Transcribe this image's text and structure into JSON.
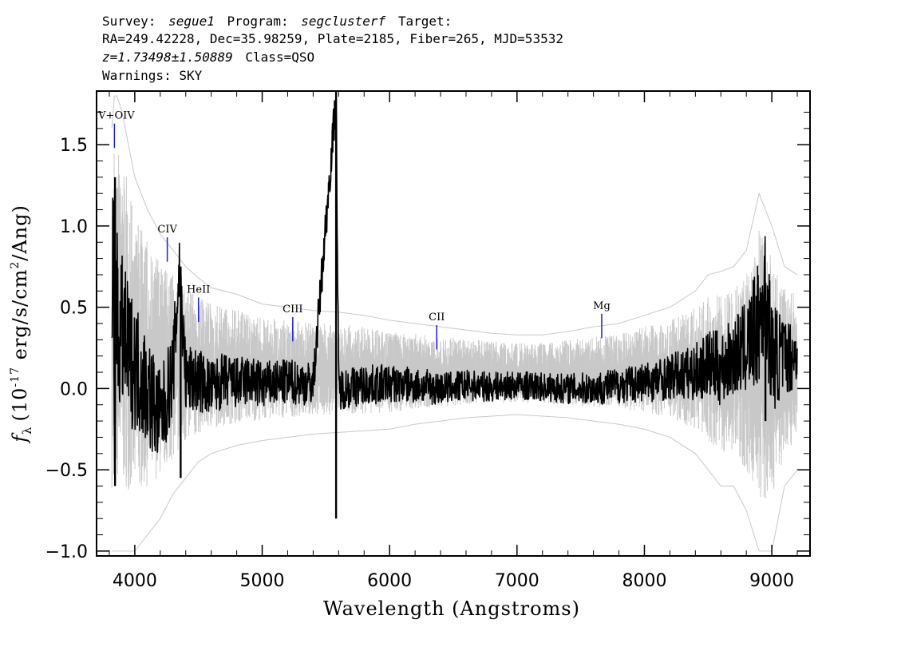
{
  "header": {
    "line1": {
      "survey_label": "Survey:",
      "survey": "segue1",
      "program_label": "Program:",
      "program": "segclusterf",
      "target_label": "Target:"
    },
    "line2": "RA=249.42228, Dec=35.98259, Plate=2185, Fiber=265, MJD=53532",
    "line3": {
      "z": "z=1.73498±1.50889",
      "class": "Class=QSO"
    },
    "line4": "Warnings: SKY"
  },
  "chart_data": {
    "type": "line",
    "xlabel": "Wavelength (Angstroms)",
    "ylabel": "f",
    "ylabel_sub": "λ",
    "ylabel_open": "(10",
    "ylabel_exp": "-17",
    "ylabel_mid": " erg/s/cm",
    "ylabel_exp2": "2",
    "ylabel_close": "/Ang)",
    "xlim": [
      3700,
      9300
    ],
    "ylim": [
      -1.03,
      1.83
    ],
    "xticks": [
      {
        "value": 4000,
        "label": "4000"
      },
      {
        "value": 5000,
        "label": "5000"
      },
      {
        "value": 6000,
        "label": "6000"
      },
      {
        "value": 7000,
        "label": "7000"
      },
      {
        "value": 8000,
        "label": "8000"
      },
      {
        "value": 9000,
        "label": "9000"
      }
    ],
    "yticks": [
      {
        "value": -1.0,
        "label": "−1.0"
      },
      {
        "value": -0.5,
        "label": "−0.5"
      },
      {
        "value": 0.0,
        "label": "0.0"
      },
      {
        "value": 0.5,
        "label": "0.5"
      },
      {
        "value": 1.0,
        "label": "1.0"
      },
      {
        "value": 1.5,
        "label": "1.5"
      }
    ],
    "series": [
      {
        "role": "error",
        "color": "#c8c8c8",
        "x": [
          3820,
          3840,
          3860,
          3900,
          3950,
          4000,
          4100,
          4200,
          4300,
          4400,
          4500,
          4600,
          4800,
          5000,
          5200,
          5400,
          5600,
          5800,
          6000,
          6200,
          6400,
          6600,
          6800,
          7000,
          7200,
          7400,
          7600,
          7800,
          8000,
          8200,
          8400,
          8500,
          8600,
          8700,
          8800,
          8900,
          9000,
          9100,
          9200
        ],
        "upper": [
          1.6,
          1.8,
          1.8,
          1.7,
          1.5,
          1.3,
          1.1,
          0.95,
          0.85,
          0.75,
          0.68,
          0.62,
          0.58,
          0.52,
          0.5,
          0.48,
          0.47,
          0.45,
          0.42,
          0.4,
          0.38,
          0.36,
          0.34,
          0.33,
          0.33,
          0.35,
          0.38,
          0.4,
          0.45,
          0.5,
          0.6,
          0.7,
          0.72,
          0.75,
          0.85,
          1.2,
          1.0,
          0.75,
          0.7
        ],
        "lower": [
          -1.0,
          -1.0,
          -1.0,
          -1.0,
          -1.0,
          -1.0,
          -0.9,
          -0.8,
          -0.65,
          -0.55,
          -0.45,
          -0.4,
          -0.35,
          -0.32,
          -0.3,
          -0.28,
          -0.27,
          -0.26,
          -0.25,
          -0.22,
          -0.2,
          -0.18,
          -0.17,
          -0.16,
          -0.17,
          -0.18,
          -0.2,
          -0.22,
          -0.25,
          -0.3,
          -0.4,
          -0.5,
          -0.6,
          -0.6,
          -0.75,
          -1.0,
          -1.0,
          -0.6,
          -0.5
        ]
      },
      {
        "role": "flux",
        "color": "#000000",
        "x": [
          3820,
          3830,
          3840,
          3850,
          3870,
          3900,
          3950,
          4000,
          4100,
          4200,
          4300,
          4350,
          4400,
          4500,
          4600,
          4700,
          4800,
          4900,
          5000,
          5200,
          5400,
          5580,
          5600,
          5800,
          6000,
          6200,
          6400,
          6600,
          6800,
          7000,
          7200,
          7400,
          7600,
          7800,
          8000,
          8200,
          8400,
          8500,
          8600,
          8700,
          8800,
          8900,
          8950,
          9000,
          9100,
          9200
        ],
        "values": [
          0.1,
          1.3,
          -0.6,
          0.7,
          0.3,
          0.35,
          0.2,
          0.15,
          0.0,
          -0.2,
          0.1,
          0.75,
          0.05,
          0.05,
          0.0,
          0.05,
          0.03,
          0.05,
          0.02,
          0.04,
          0.03,
          1.8,
          0.0,
          0.02,
          0.03,
          0.02,
          0.0,
          0.02,
          0.01,
          0.02,
          0.01,
          0.0,
          0.0,
          0.02,
          0.04,
          0.07,
          0.1,
          0.15,
          0.12,
          0.2,
          0.25,
          0.4,
          0.6,
          0.2,
          0.2,
          0.2
        ],
        "spikes": [
          {
            "x": 5580,
            "lo": -0.8,
            "hi": 1.83
          },
          {
            "x": 3845,
            "lo": -0.6,
            "hi": 1.3
          },
          {
            "x": 4360,
            "lo": -0.55,
            "hi": 0.75
          },
          {
            "x": 8950,
            "lo": -0.2,
            "hi": 0.65
          }
        ]
      }
    ],
    "lines": [
      {
        "label": "IV+OIV",
        "x": 3840,
        "y_top": 1.63,
        "y_bot": 1.48
      },
      {
        "label": "CIV",
        "x": 4255,
        "y_top": 0.93,
        "y_bot": 0.78
      },
      {
        "label": "HeII",
        "x": 4500,
        "y_top": 0.56,
        "y_bot": 0.41
      },
      {
        "label": "CIII",
        "x": 5240,
        "y_top": 0.44,
        "y_bot": 0.29
      },
      {
        "label": "CII",
        "x": 6370,
        "y_top": 0.39,
        "y_bot": 0.24
      },
      {
        "label": "Mg",
        "x": 7665,
        "y_top": 0.46,
        "y_bot": 0.31
      }
    ],
    "line_marker_color": "#1a1aff"
  }
}
